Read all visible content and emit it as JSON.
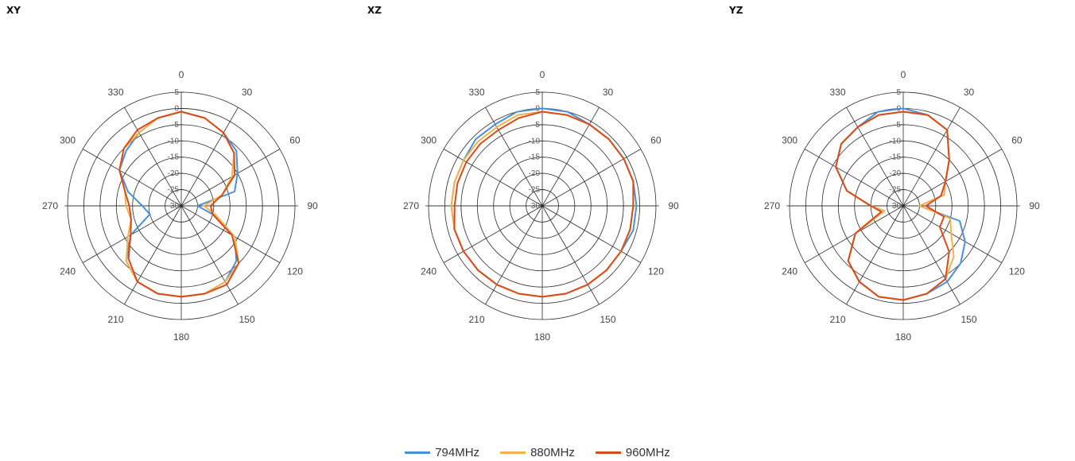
{
  "series_colors": [
    "#4a90d9",
    "#f5b24a",
    "#d84c1c"
  ],
  "legend": [
    "794MHz",
    "880MHz",
    "960MHz"
  ],
  "chart_data": [
    {
      "type": "polar-line",
      "title": "XY",
      "r_ticks": [
        5,
        0,
        -5,
        -10,
        -15,
        -20,
        -25,
        -30
      ],
      "r_range": [
        -30,
        5
      ],
      "angle_labels": [
        "0",
        "30",
        "60",
        "90",
        "120",
        "150",
        "180",
        "210",
        "240",
        "270",
        "300",
        "330"
      ],
      "angles_deg": [
        0,
        15,
        30,
        45,
        60,
        75,
        90,
        105,
        120,
        135,
        150,
        165,
        180,
        195,
        210,
        225,
        240,
        255,
        270,
        285,
        300,
        315,
        330,
        345
      ],
      "series": [
        {
          "name": "794MHz",
          "values": [
            -1,
            -2,
            -4,
            -6,
            -10,
            -13,
            -25,
            -20,
            -11,
            -6,
            -3,
            -2,
            -2,
            -2,
            -3,
            -6,
            -12,
            -20,
            -18,
            -13,
            -8,
            -6,
            -4,
            -2
          ]
        },
        {
          "name": "880MHz",
          "values": [
            -1,
            -2,
            -4,
            -7,
            -12,
            -17,
            -23,
            -19,
            -11,
            -5,
            -3,
            -2,
            -2,
            -2,
            -3,
            -6,
            -11,
            -14,
            -13,
            -12,
            -8,
            -5,
            -4,
            -2
          ]
        },
        {
          "name": "960MHz",
          "values": [
            -1,
            -2,
            -4,
            -7,
            -11,
            -17,
            -21,
            -20,
            -12,
            -5,
            -2,
            -2,
            -2,
            -2,
            -3,
            -7,
            -12,
            -14,
            -14,
            -12,
            -8,
            -5,
            -3,
            -2
          ]
        }
      ]
    },
    {
      "type": "polar-line",
      "title": "XZ",
      "r_ticks": [
        5,
        0,
        -5,
        -10,
        -15,
        -20,
        -25,
        -30
      ],
      "r_range": [
        -30,
        5
      ],
      "angle_labels": [
        "0",
        "30",
        "60",
        "90",
        "120",
        "150",
        "180",
        "210",
        "240",
        "270",
        "300",
        "330"
      ],
      "angles_deg": [
        0,
        15,
        30,
        45,
        60,
        75,
        90,
        105,
        120,
        135,
        150,
        165,
        180,
        195,
        210,
        225,
        240,
        255,
        270,
        285,
        300,
        315,
        330,
        345
      ],
      "series": [
        {
          "name": "794MHz",
          "values": [
            0,
            0,
            -1,
            -1,
            -1,
            -1,
            -1,
            -1,
            -2,
            -2,
            -2,
            -2,
            -2,
            -2,
            -2,
            -2,
            -2,
            -2,
            -2,
            -2,
            -2,
            -1,
            -1,
            0
          ]
        },
        {
          "name": "880MHz",
          "values": [
            -1,
            -1,
            -1,
            -1,
            -1,
            -1,
            -2,
            -2,
            -2,
            -2,
            -2,
            -2,
            -2,
            -2,
            -2,
            -2,
            -2,
            -2,
            -2,
            -2,
            -2,
            -2,
            -2,
            -1
          ]
        },
        {
          "name": "960MHz",
          "values": [
            -1,
            -1,
            -1,
            -1,
            -1,
            -1,
            -2,
            -2,
            -2,
            -2,
            -2,
            -2,
            -2,
            -2,
            -2,
            -2,
            -2,
            -2,
            -3,
            -3,
            -3,
            -3,
            -3,
            -2
          ]
        }
      ]
    },
    {
      "type": "polar-line",
      "title": "YZ",
      "r_ticks": [
        5,
        0,
        -5,
        -10,
        -15,
        -20,
        -25,
        -30
      ],
      "r_range": [
        -30,
        5
      ],
      "angle_labels": [
        "0",
        "30",
        "60",
        "90",
        "120",
        "150",
        "180",
        "210",
        "240",
        "270",
        "300",
        "330"
      ],
      "angles_deg": [
        0,
        15,
        30,
        45,
        60,
        75,
        90,
        105,
        120,
        135,
        150,
        165,
        180,
        195,
        210,
        225,
        240,
        255,
        270,
        285,
        300,
        315,
        330,
        345
      ],
      "series": [
        {
          "name": "794MHz",
          "values": [
            0,
            -1,
            -3,
            -10,
            -15,
            -17,
            -25,
            -12,
            -8,
            -5,
            -3,
            -2,
            -1,
            -1,
            -3,
            -6,
            -13,
            -24,
            -20,
            -12,
            -6,
            -3,
            -2,
            0
          ]
        },
        {
          "name": "880MHz",
          "values": [
            -1,
            -1,
            -3,
            -10,
            -15,
            -17,
            -25,
            -15,
            -13,
            -8,
            -4,
            -2,
            -1,
            -1,
            -3,
            -6,
            -13,
            -24,
            -20,
            -12,
            -6,
            -3,
            -2,
            -1
          ]
        },
        {
          "name": "960MHz",
          "values": [
            -1,
            -1,
            -3,
            -10,
            -15,
            -18,
            -23,
            -17,
            -17,
            -10,
            -4,
            -2,
            -1,
            -1,
            -3,
            -6,
            -13,
            -23,
            -20,
            -12,
            -6,
            -3,
            -2,
            -1
          ]
        }
      ]
    }
  ]
}
